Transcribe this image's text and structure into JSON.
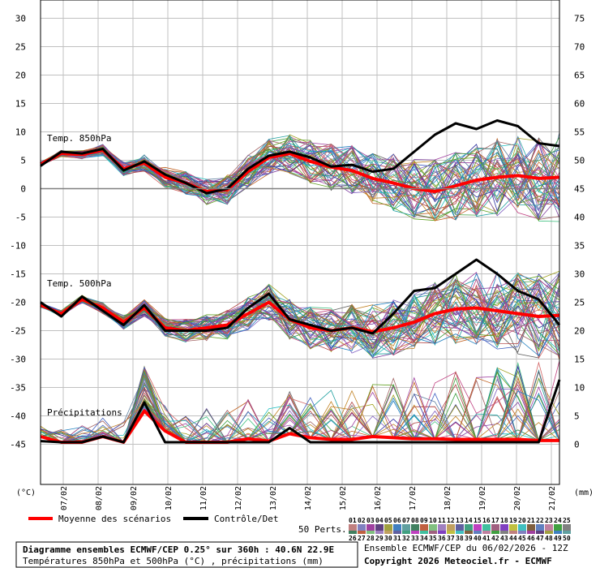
{
  "chart_data": {
    "type": "line",
    "title": "Diagramme ensembles ECMWF/CEP 0.25° sur 360h : 40.6N 22.9E",
    "subtitle": "Températures 850hPa et 500hPa (°C) , précipitations (mm)",
    "source_line": "Ensemble ECMWF/CEP du 06/02/2026 - 12Z",
    "copyright": "Copyright 2026 Meteociel.fr - ECMWF",
    "left_unit": "(°C)",
    "right_unit": "(mm)",
    "left_ticks": [
      "30",
      "25",
      "20",
      "15",
      "10",
      "5",
      "0",
      "-5",
      "-10",
      "-15",
      "-20",
      "-25",
      "-30",
      "-35",
      "-40",
      "-45"
    ],
    "right_ticks": [
      "75",
      "70",
      "65",
      "60",
      "55",
      "50",
      "45",
      "40",
      "35",
      "30",
      "25",
      "20",
      "15",
      "10",
      "5",
      "0"
    ],
    "left_ylim": [
      -45,
      30
    ],
    "x_tick_labels": [
      "07/02",
      "08/02",
      "09/02",
      "10/02",
      "11/02",
      "12/02",
      "13/02",
      "14/02",
      "15/02",
      "16/02",
      "17/02",
      "18/02",
      "19/02",
      "20/02",
      "21/02"
    ],
    "grid": true,
    "annotations": {
      "t850": "Temp. 850hPa",
      "t500": "Temp. 500hPa",
      "precip": "Précipitations"
    },
    "legend": {
      "mean_label": "Moyenne des scénarios",
      "control_label": "Contrôle/Det",
      "perts_label": "50 Perts.",
      "pert_numbers_top": [
        "01",
        "02",
        "03",
        "04",
        "05",
        "06",
        "07",
        "08",
        "09",
        "10",
        "11",
        "12",
        "13",
        "14",
        "15",
        "16",
        "17",
        "18",
        "19",
        "20",
        "21",
        "22",
        "23",
        "24",
        "25"
      ],
      "pert_numbers_bottom": [
        "26",
        "27",
        "28",
        "29",
        "30",
        "31",
        "32",
        "33",
        "34",
        "35",
        "36",
        "37",
        "38",
        "39",
        "40",
        "41",
        "42",
        "43",
        "44",
        "45",
        "46",
        "47",
        "48",
        "49",
        "50"
      ]
    },
    "colors": {
      "mean": "#ff0000",
      "control": "#000000",
      "grid": "#c0c0c0"
    },
    "series": [
      {
        "name": "Moyenne des scénarios",
        "group": "t850",
        "values": [
          4.3,
          6.2,
          6.0,
          6.8,
          3.5,
          4.5,
          2.0,
          1.0,
          -0.5,
          -0.2,
          3.0,
          5.5,
          6.2,
          4.8,
          3.8,
          3.2,
          1.8,
          1.0,
          0.0,
          -0.5,
          0.5,
          1.5,
          2.0,
          2.3,
          1.8,
          2.0
        ]
      },
      {
        "name": "Contrôle/Det",
        "group": "t850",
        "values": [
          4.0,
          6.5,
          6.2,
          7.0,
          3.2,
          4.8,
          2.5,
          1.0,
          -0.8,
          0.0,
          3.5,
          5.8,
          6.5,
          5.5,
          3.9,
          4.2,
          3.0,
          3.5,
          6.5,
          9.5,
          11.5,
          10.5,
          12.0,
          11.0,
          8.0,
          7.5
        ]
      },
      {
        "name": "Moyenne des scénarios",
        "group": "t500",
        "values": [
          -20.5,
          -22.0,
          -19.5,
          -21.0,
          -23.5,
          -21.0,
          -24.5,
          -25.0,
          -24.5,
          -24.0,
          -22.0,
          -20.0,
          -23.0,
          -24.5,
          -25.0,
          -24.5,
          -25.2,
          -24.5,
          -23.5,
          -22.0,
          -21.2,
          -21.0,
          -21.5,
          -22.0,
          -22.5,
          -22.3
        ]
      },
      {
        "name": "Contrôle/Det",
        "group": "t500",
        "values": [
          -20.0,
          -22.5,
          -19.0,
          -21.5,
          -24.0,
          -20.5,
          -25.0,
          -25.0,
          -25.0,
          -24.5,
          -21.0,
          -18.5,
          -23.0,
          -24.0,
          -25.0,
          -24.5,
          -25.5,
          -22.0,
          -18.0,
          -17.5,
          -15.0,
          -12.5,
          -15.0,
          -18.0,
          -19.5,
          -24.0
        ]
      },
      {
        "name": "Moyenne des scénarios",
        "group": "precip",
        "values": [
          1.0,
          0.0,
          0.0,
          1.0,
          0.0,
          5.5,
          2.0,
          0.0,
          0.0,
          0.0,
          0.6,
          0.2,
          1.5,
          0.8,
          0.5,
          0.5,
          1.0,
          0.8,
          0.6,
          0.6,
          0.5,
          0.5,
          0.5,
          0.5,
          0.3,
          0.3
        ]
      },
      {
        "name": "Contrôle/Det",
        "group": "precip",
        "values": [
          0.2,
          0.0,
          0.0,
          1.0,
          0.0,
          7.0,
          0.0,
          0.0,
          0.0,
          0.0,
          0.0,
          0.0,
          2.5,
          0.0,
          0.0,
          0.0,
          0.0,
          0.0,
          0.0,
          0.0,
          0.0,
          0.0,
          0.0,
          0.0,
          0.0,
          11.0
        ]
      }
    ]
  }
}
